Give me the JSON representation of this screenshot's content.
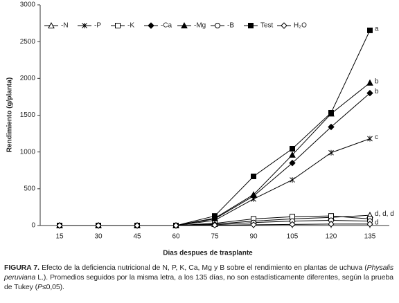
{
  "chart_data": {
    "type": "line",
    "xlabel": "Dias despues de trasplante",
    "ylabel": "Rendimiento (g/planta)",
    "x": [
      15,
      30,
      45,
      60,
      75,
      90,
      105,
      120,
      135
    ],
    "xlim": [
      7.5,
      142.5
    ],
    "xticks": [
      15,
      30,
      45,
      60,
      75,
      90,
      105,
      120,
      135
    ],
    "ylim": [
      0,
      3000
    ],
    "yticks": [
      0,
      500,
      1000,
      1500,
      2000,
      2500,
      3000
    ],
    "series": [
      {
        "name": "-N",
        "color": "#000000",
        "marker": "triangle-open",
        "values": [
          0,
          0,
          0,
          0,
          20,
          60,
          90,
          110,
          140
        ],
        "label": "d, d, d"
      },
      {
        "name": "-P",
        "color": "#000000",
        "marker": "asterisk",
        "values": [
          0,
          0,
          0,
          0,
          70,
          360,
          620,
          990,
          1180
        ],
        "label": "c"
      },
      {
        "name": "-K",
        "color": "#000000",
        "marker": "square-open",
        "values": [
          0,
          0,
          0,
          0,
          30,
          90,
          120,
          130,
          90
        ]
      },
      {
        "name": "-Ca",
        "color": "#000000",
        "marker": "diamond",
        "values": [
          0,
          0,
          0,
          0,
          90,
          400,
          850,
          1340,
          1800
        ],
        "label": "b"
      },
      {
        "name": "-Mg",
        "color": "#000000",
        "marker": "triangle",
        "values": [
          0,
          0,
          0,
          0,
          100,
          420,
          960,
          1520,
          1940
        ],
        "label": "b"
      },
      {
        "name": "-B",
        "color": "#000000",
        "marker": "circle-open",
        "values": [
          0,
          0,
          0,
          0,
          10,
          40,
          60,
          70,
          60
        ]
      },
      {
        "name": "Test",
        "color": "#000000",
        "marker": "square",
        "values": [
          0,
          0,
          0,
          0,
          130,
          668,
          1044,
          1533,
          2653
        ],
        "label": "a"
      },
      {
        "name": "H₂O",
        "color": "#000000",
        "marker": "diamond-open",
        "values": [
          0,
          0,
          0,
          0,
          5,
          10,
          15,
          20,
          20
        ],
        "label": "d"
      }
    ]
  },
  "caption": {
    "label": "FIGURA 7.",
    "parts": [
      " Efecto de la deficiencia nutricional de N, P, K, Ca, Mg y B sobre el rendimiento en plantas de uchuva (",
      "Physalis peruviana",
      " L.). Promedios seguidos por la misma letra, a los 135 días, no son estadísticamente diferentes, según la prueba de Tukey (",
      "P",
      "≤0,05)."
    ]
  }
}
